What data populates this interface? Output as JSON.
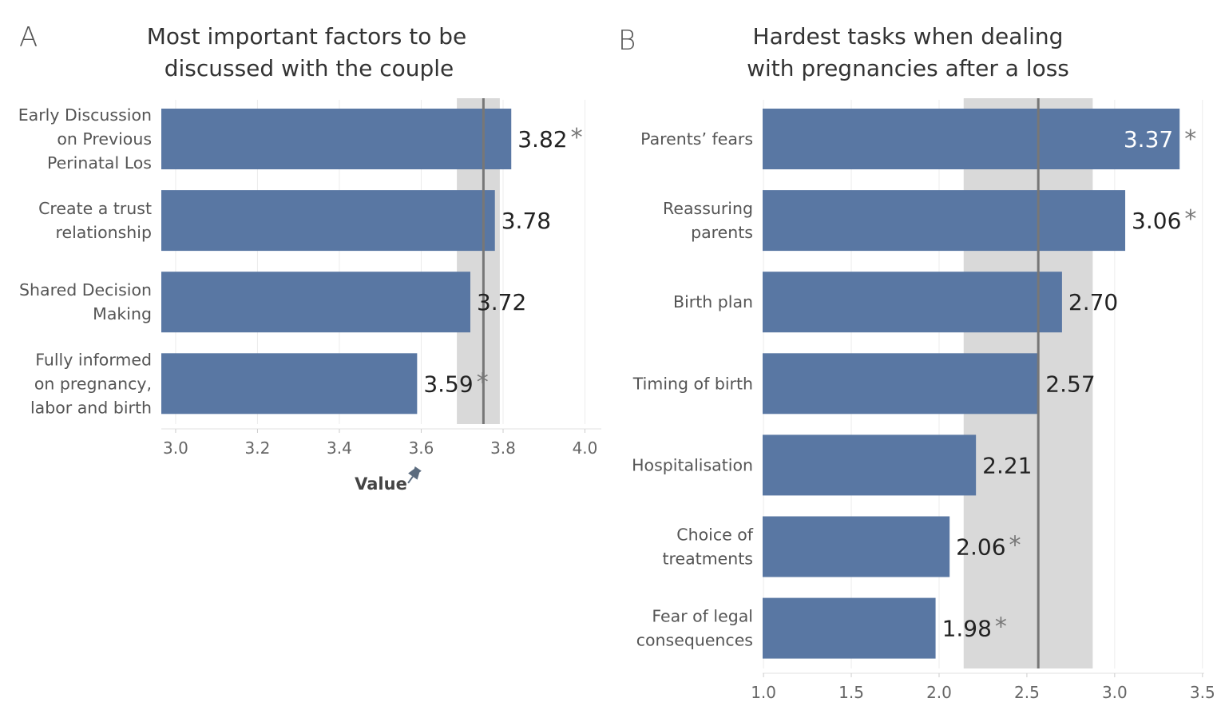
{
  "chart_data": [
    {
      "type": "bar",
      "orientation": "horizontal",
      "panel_letter": "A",
      "title": "Most important factors to be discussed with the couple",
      "title_lines": [
        "Most important factors to be",
        "discussed with the couple"
      ],
      "categories": [
        [
          "Early Discussion",
          "on Previous",
          "Perinatal Los"
        ],
        [
          "Create a trust",
          "relationship"
        ],
        [
          "Shared Decision",
          "Making"
        ],
        [
          "Fully informed",
          "on pregnancy,",
          "labor and birth"
        ]
      ],
      "values": [
        3.82,
        3.78,
        3.72,
        3.59
      ],
      "value_labels": [
        "3.82",
        "3.78",
        "3.72",
        "3.59"
      ],
      "significant": [
        true,
        false,
        false,
        true
      ],
      "xlabel": "Value",
      "xlim": [
        2.965,
        4.04
      ],
      "xticks": [
        3.0,
        3.2,
        3.4,
        3.6,
        3.8,
        4.0
      ],
      "xtick_labels": [
        "3.0",
        "3.2",
        "3.4",
        "3.6",
        "3.8",
        "4.0"
      ],
      "reference_line": 3.752,
      "reference_band": [
        3.687,
        3.792
      ],
      "grid": true
    },
    {
      "type": "bar",
      "orientation": "horizontal",
      "panel_letter": "B",
      "title": "Hardest tasks when dealing with pregnancies after a loss",
      "title_lines": [
        "Hardest tasks when dealing",
        "with pregnancies after a loss"
      ],
      "categories": [
        [
          "Parents’ fears"
        ],
        [
          "Reassuring",
          "parents"
        ],
        [
          "Birth plan"
        ],
        [
          "Timing of birth"
        ],
        [
          "Hospitalisation"
        ],
        [
          "Choice of",
          "treatments"
        ],
        [
          "Fear of legal",
          "consequences"
        ]
      ],
      "values": [
        3.37,
        3.06,
        2.7,
        2.57,
        2.21,
        2.06,
        1.98
      ],
      "value_labels": [
        "3.37",
        "3.06",
        "2.70",
        "2.57",
        "2.21",
        "2.06",
        "1.98"
      ],
      "significant": [
        true,
        true,
        false,
        false,
        false,
        true,
        true
      ],
      "xlabel": "",
      "xlim": [
        0.995,
        3.51
      ],
      "xticks": [
        1.0,
        1.5,
        2.0,
        2.5,
        3.0,
        3.5
      ],
      "xtick_labels": [
        "1.0",
        "1.5",
        "2.0",
        "2.5",
        "3.0",
        "3.5"
      ],
      "reference_line": 2.565,
      "reference_band": [
        2.14,
        2.875
      ],
      "grid": true
    }
  ],
  "star_symbol": "*",
  "pin_icon": "pin-icon",
  "colors": {
    "bar": "#5977a3",
    "band": "#d9d9d9",
    "reference_line": "#777777",
    "grid": "#ececec",
    "value_dark": "#222222",
    "value_light": "#ffffff"
  }
}
